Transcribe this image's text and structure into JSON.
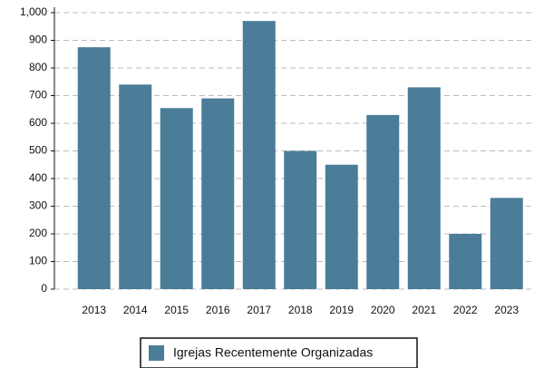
{
  "chart_data": {
    "type": "bar",
    "categories": [
      "2013",
      "2014",
      "2015",
      "2016",
      "2017",
      "2018",
      "2019",
      "2020",
      "2021",
      "2022",
      "2023"
    ],
    "series": [
      {
        "name": "Igrejas Recentemente Organizadas",
        "color": "#4b7d98",
        "values": [
          875,
          740,
          655,
          690,
          970,
          500,
          450,
          630,
          730,
          200,
          330
        ]
      }
    ],
    "ylim": [
      0,
      1000
    ],
    "yticks": [
      0,
      100,
      200,
      300,
      400,
      500,
      600,
      700,
      800,
      900,
      {
        "value": 1000,
        "label": "1,000"
      }
    ],
    "grid": true,
    "legend": "bottom"
  }
}
